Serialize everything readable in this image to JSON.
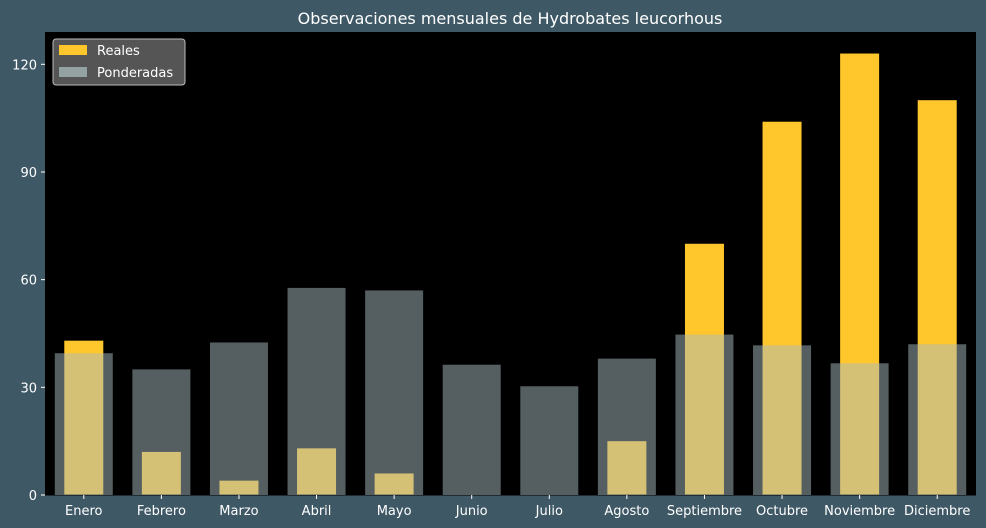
{
  "chart_data": {
    "type": "bar",
    "title": "Observaciones mensuales de Hydrobates leucorhous",
    "xlabel": "",
    "ylabel": "",
    "categories": [
      "Enero",
      "Febrero",
      "Marzo",
      "Abril",
      "Mayo",
      "Junio",
      "Julio",
      "Agosto",
      "Septiembre",
      "Octubre",
      "Noviembre",
      "Diciembre"
    ],
    "series": [
      {
        "name": "Reales",
        "color": "#ffc72c",
        "values": [
          43,
          12,
          4,
          13,
          6,
          0,
          0,
          15,
          70,
          104,
          123,
          110
        ]
      },
      {
        "name": "Ponderadas",
        "color": "#a9bcbf",
        "values": [
          39.5,
          35,
          42.5,
          57.7,
          57,
          36.3,
          30.3,
          38,
          44.7,
          41.7,
          36.7,
          42
        ]
      }
    ],
    "ylim": [
      0,
      129
    ],
    "yticks": [
      0,
      30,
      60,
      90,
      120
    ],
    "grid": false,
    "legend_position": "top-left",
    "colors": {
      "figure_background": "#3f5866",
      "plot_background": "#000000",
      "text": "#ffffff"
    }
  }
}
